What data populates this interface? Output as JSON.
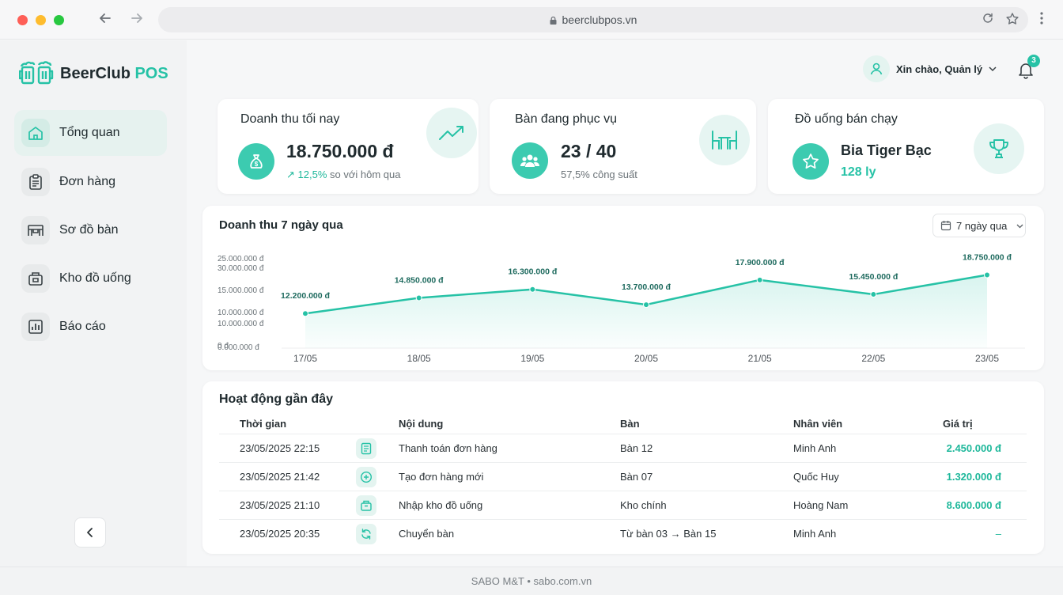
{
  "browser": {
    "url": "beerclubpos.vn"
  },
  "brand": {
    "name": "BeerClub",
    "suffix": "POS",
    "accent": "#26c2a6"
  },
  "sidebar": {
    "items": [
      {
        "label": "Tổng quan",
        "icon": "home-icon",
        "active": true
      },
      {
        "label": "Đơn hàng",
        "icon": "clipboard-icon",
        "active": false
      },
      {
        "label": "Sơ đồ bàn",
        "icon": "table-layout-icon",
        "active": false
      },
      {
        "label": "Kho đồ uống",
        "icon": "inventory-icon",
        "active": false
      },
      {
        "label": "Báo cáo",
        "icon": "report-icon",
        "active": false
      }
    ]
  },
  "header": {
    "greeting": "Xin chào, Quản lý",
    "notification_count": "3"
  },
  "kpis": {
    "revenue": {
      "title": "Doanh thu tối nay",
      "value": "18.750.000 đ",
      "change": "12,5%",
      "change_text": "so với hôm qua"
    },
    "tables": {
      "title": "Bàn đang phục vụ",
      "value": "23 / 40",
      "sub": "57,5% công suất"
    },
    "top_drink": {
      "title": "Đồ uống bán chạy",
      "value": "Bia Tiger Bạc",
      "sub": "128 ly"
    }
  },
  "chart_data": {
    "type": "area",
    "title": "Doanh thu 7 ngày qua",
    "range_label": "7 ngày qua",
    "categories": [
      "17/05",
      "18/05",
      "19/05",
      "20/05",
      "21/05",
      "22/05",
      "23/05"
    ],
    "values": [
      12200000,
      14850000,
      16300000,
      13700000,
      17900000,
      15450000,
      18750000
    ],
    "value_labels": [
      "12.200.000 đ",
      "14.850.000 đ",
      "16.300.000 đ",
      "13.700.000 đ",
      "17.900.000 đ",
      "15.450.000 đ",
      "18.750.000 đ"
    ],
    "ytick_labels": [
      "25.000.000 đ",
      "30.000.000 đ",
      "15.000.000 đ",
      "10.000.000 đ",
      "10.000.000 đ",
      "0 đ",
      "0.000.000 đ"
    ],
    "ylim": [
      0,
      25000000
    ],
    "grid": false,
    "color": "#26c2a6"
  },
  "activity": {
    "title": "Hoạt động gần đây",
    "columns": [
      "Thời gian",
      "Nội dung",
      "Bàn",
      "Nhân viên",
      "Giá trị"
    ],
    "rows": [
      {
        "time": "23/05/2025 22:15",
        "icon": "receipt-icon",
        "content": "Thanh toán đơn hàng",
        "table": "Bàn 12",
        "staff": "Minh Anh",
        "value": "2.450.000 đ"
      },
      {
        "time": "23/05/2025 21:42",
        "icon": "plus-circle-icon",
        "content": "Tạo đơn hàng mới",
        "table": "Bàn 07",
        "staff": "Quốc Huy",
        "value": "1.320.000 đ"
      },
      {
        "time": "23/05/2025 21:10",
        "icon": "box-icon",
        "content": "Nhập kho đồ uống",
        "table": "Kho chính",
        "staff": "Hoàng Nam",
        "value": "8.600.000 đ"
      },
      {
        "time": "23/05/2025 20:35",
        "icon": "swap-icon",
        "content": "Chuyển bàn",
        "table": "Từ bàn 03 → Bàn 15",
        "staff": "Minh Anh",
        "value": "–"
      }
    ]
  },
  "footer": {
    "text": "SABO M&T • sabo.com.vn"
  }
}
